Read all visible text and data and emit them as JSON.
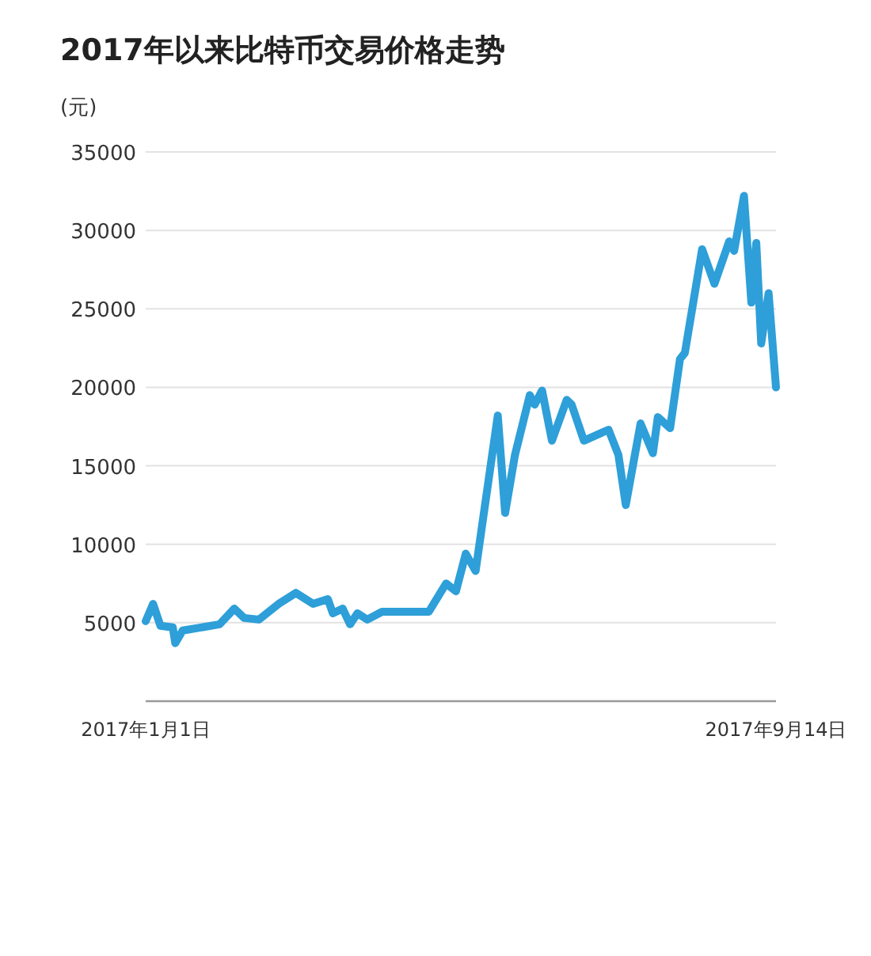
{
  "chart_data": {
    "type": "line",
    "title": "2017年以来比特币交易价格走势",
    "ylabel": "(元)",
    "color": "#2e9fd8",
    "grid": "y",
    "xlim": [
      "2017-01-01",
      "2017-09-14"
    ],
    "xticks": [
      {
        "value": "2017-01-01",
        "label": "2017年1月1日"
      },
      {
        "value": "2017-09-14",
        "label": "2017年9月14日"
      }
    ],
    "ylim": [
      0,
      35000
    ],
    "yticks": [
      5000,
      10000,
      15000,
      20000,
      25000,
      30000,
      35000
    ],
    "x": [
      "2017-01-01",
      "2017-01-04",
      "2017-01-07",
      "2017-01-12",
      "2017-01-13",
      "2017-01-16",
      "2017-01-31",
      "2017-02-06",
      "2017-02-10",
      "2017-02-16",
      "2017-02-24",
      "2017-03-03",
      "2017-03-10",
      "2017-03-16",
      "2017-03-18",
      "2017-03-22",
      "2017-03-25",
      "2017-03-28",
      "2017-04-01",
      "2017-04-07",
      "2017-04-26",
      "2017-05-03",
      "2017-05-07",
      "2017-05-11",
      "2017-05-15",
      "2017-05-24",
      "2017-05-27",
      "2017-05-31",
      "2017-06-06",
      "2017-06-08",
      "2017-06-11",
      "2017-06-15",
      "2017-06-21",
      "2017-06-23",
      "2017-06-28",
      "2017-07-08",
      "2017-07-12",
      "2017-07-15",
      "2017-07-21",
      "2017-07-26",
      "2017-07-28",
      "2017-08-02",
      "2017-08-06",
      "2017-08-08",
      "2017-08-15",
      "2017-08-20",
      "2017-08-26",
      "2017-08-28",
      "2017-09-01",
      "2017-09-04",
      "2017-09-06",
      "2017-09-08",
      "2017-09-11",
      "2017-09-14"
    ],
    "values": [
      5100,
      6200,
      4800,
      4700,
      3700,
      4500,
      4900,
      5900,
      5300,
      5200,
      6200,
      6900,
      6200,
      6500,
      5600,
      5900,
      4900,
      5600,
      5200,
      5700,
      5700,
      7500,
      7000,
      9400,
      8300,
      18200,
      12000,
      15700,
      19500,
      18900,
      19800,
      16600,
      19200,
      18900,
      16600,
      17300,
      15700,
      12500,
      17700,
      15800,
      18100,
      17400,
      21800,
      22200,
      28800,
      26600,
      29300,
      28700,
      32200,
      25400,
      29200,
      22800,
      26000,
      20000
    ]
  }
}
